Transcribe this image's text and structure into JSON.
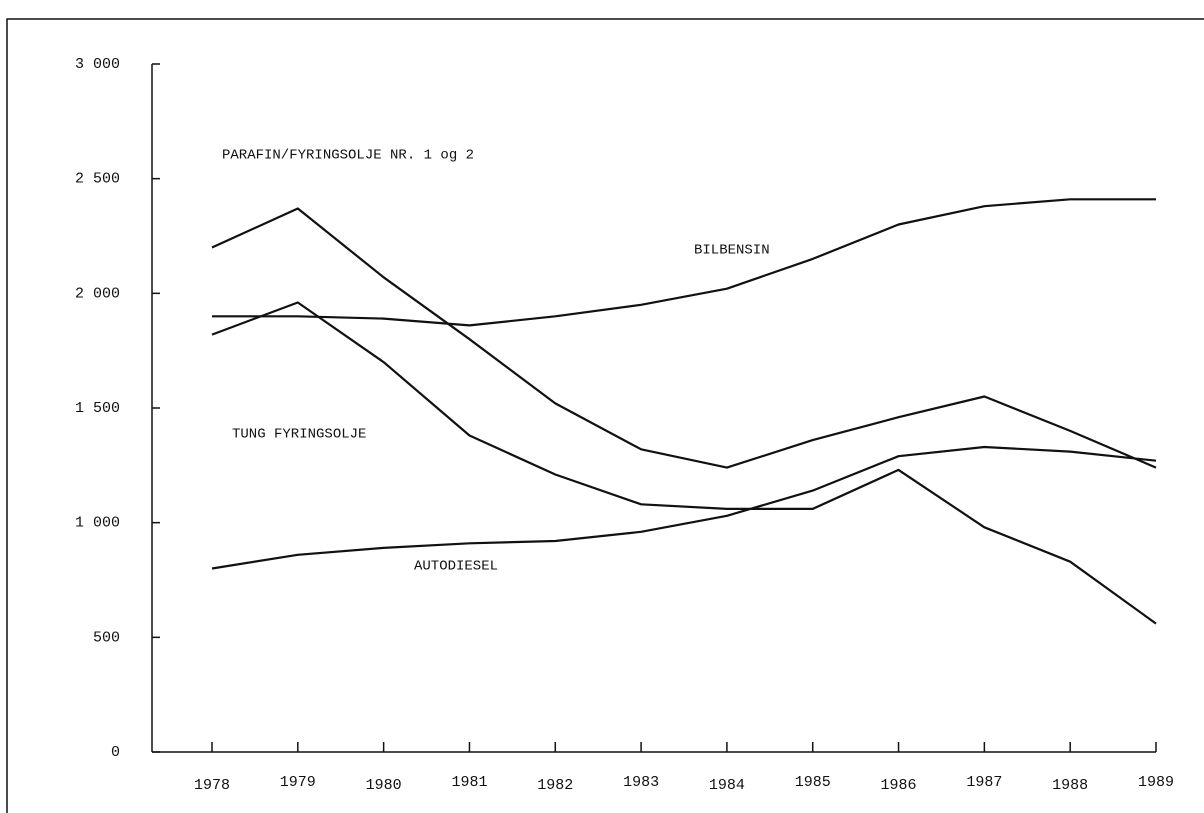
{
  "chart_data": {
    "type": "line",
    "categories": [
      "1978",
      "1979",
      "1980",
      "1981",
      "1982",
      "1983",
      "1984",
      "1985",
      "1986",
      "1987",
      "1988",
      "1989"
    ],
    "series": [
      {
        "name": "PARAFIN/FYRINGSOLJE NR. 1 og 2",
        "color": "#111111",
        "values": [
          2200,
          2370,
          2070,
          1800,
          1520,
          1320,
          1240,
          1360,
          1460,
          1550,
          1400,
          1240
        ]
      },
      {
        "name": "BILBENSIN",
        "color": "#111111",
        "values": [
          1900,
          1900,
          1890,
          1860,
          1900,
          1950,
          2020,
          2150,
          2300,
          2380,
          2410,
          2410
        ]
      },
      {
        "name": "TUNG FYRINGSOLJE",
        "color": "#111111",
        "values": [
          1820,
          1960,
          1700,
          1380,
          1210,
          1080,
          1060,
          1060,
          1230,
          980,
          830,
          560
        ]
      },
      {
        "name": "AUTODIESEL",
        "color": "#111111",
        "values": [
          800,
          860,
          890,
          910,
          920,
          960,
          1030,
          1140,
          1290,
          1330,
          1310,
          1270
        ]
      }
    ],
    "ylim": [
      0,
      3000
    ],
    "yticks": [
      0,
      500,
      {
        "value": 1000,
        "label": "1 000"
      },
      {
        "value": 1500,
        "label": "1 500"
      },
      {
        "value": 2000,
        "label": "2 000"
      },
      {
        "value": 2500,
        "label": "2 500"
      },
      {
        "value": 3000,
        "label": "3 000"
      }
    ]
  }
}
